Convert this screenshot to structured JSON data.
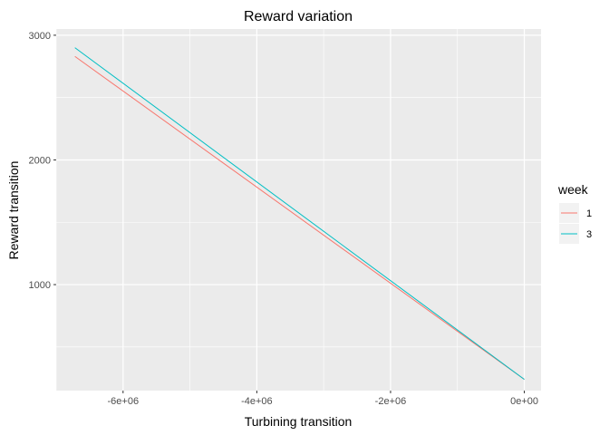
{
  "chart_data": {
    "type": "line",
    "title": "Reward variation",
    "xlabel": "Turbining transition",
    "ylabel": "Reward transition",
    "xlim": [
      -7000000,
      250000
    ],
    "ylim": [
      150,
      3050
    ],
    "x_ticks": [
      -6000000,
      -4000000,
      -2000000,
      0
    ],
    "x_tick_labels": [
      "-6e+06",
      "-4e+06",
      "-2e+06",
      "0e+00"
    ],
    "x_minor_ticks": [
      -7000000,
      -5000000,
      -3000000,
      -1000000
    ],
    "y_ticks": [
      1000,
      2000,
      3000
    ],
    "y_tick_labels": [
      "1000",
      "2000",
      "3000"
    ],
    "y_minor_ticks": [
      500,
      1500,
      2500
    ],
    "grid": true,
    "legend": {
      "title": "week",
      "position": "right"
    },
    "series": [
      {
        "name": "1",
        "color": "#F8766D",
        "x": [
          -6720000,
          0
        ],
        "y": [
          2830,
          240
        ]
      },
      {
        "name": "3",
        "color": "#00BFC4",
        "x": [
          -6720000,
          0
        ],
        "y": [
          2900,
          240
        ]
      }
    ]
  }
}
